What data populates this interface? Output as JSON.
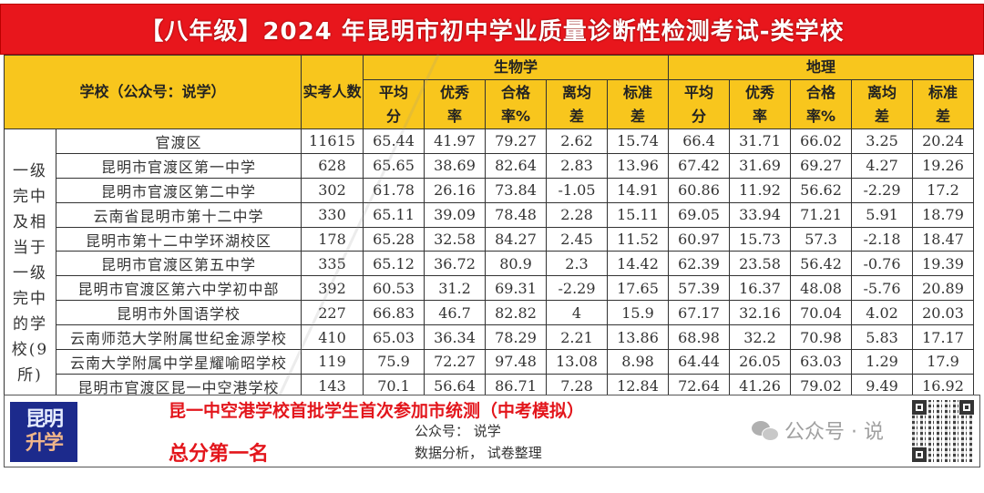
{
  "title": "【八年级】2024 年昆明市初中学业质量诊断性检测考试-类学校",
  "header": {
    "school_col": "学校（公众号：说学）",
    "count_col": "实考人数",
    "subjects": [
      {
        "name": "生物学",
        "metrics": [
          "平均分",
          "优秀率",
          "合格率%",
          "离均差",
          "标准差"
        ]
      },
      {
        "name": "地理",
        "metrics": [
          "平均分",
          "优秀率",
          "合格率%",
          "离均差",
          "标准差"
        ]
      }
    ]
  },
  "category_label": "一级完中及相当于一级完中的学校(9所)",
  "rows": [
    {
      "school": "官渡区",
      "count": "11615",
      "bio": [
        "65.44",
        "41.97",
        "79.27",
        "2.62",
        "15.74"
      ],
      "geo": [
        "66.4",
        "31.71",
        "66.02",
        "3.25",
        "20.24"
      ]
    },
    {
      "school": "昆明市官渡区第一中学",
      "count": "628",
      "bio": [
        "65.65",
        "38.69",
        "82.64",
        "2.83",
        "13.96"
      ],
      "geo": [
        "67.42",
        "31.69",
        "69.27",
        "4.27",
        "19.26"
      ]
    },
    {
      "school": "昆明市官渡区第二中学",
      "count": "302",
      "bio": [
        "61.78",
        "26.16",
        "73.84",
        "-1.05",
        "14.91"
      ],
      "geo": [
        "60.86",
        "11.92",
        "56.62",
        "-2.29",
        "17.2"
      ]
    },
    {
      "school": "云南省昆明市第十二中学",
      "count": "330",
      "bio": [
        "65.11",
        "39.09",
        "78.48",
        "2.28",
        "15.11"
      ],
      "geo": [
        "69.05",
        "33.94",
        "71.21",
        "5.91",
        "18.79"
      ]
    },
    {
      "school": "昆明市第十二中学环湖校区",
      "count": "178",
      "bio": [
        "65.28",
        "32.58",
        "84.27",
        "2.45",
        "11.52"
      ],
      "geo": [
        "60.97",
        "15.73",
        "57.3",
        "-2.18",
        "18.47"
      ]
    },
    {
      "school": "昆明市官渡区第五中学",
      "count": "335",
      "bio": [
        "65.12",
        "36.72",
        "80.9",
        "2.3",
        "14.42"
      ],
      "geo": [
        "62.39",
        "23.58",
        "56.42",
        "-0.76",
        "19.39"
      ]
    },
    {
      "school": "昆明市官渡区第六中学初中部",
      "count": "392",
      "bio": [
        "60.53",
        "31.2",
        "69.31",
        "-2.29",
        "17.65"
      ],
      "geo": [
        "57.39",
        "16.37",
        "48.08",
        "-5.76",
        "20.89"
      ]
    },
    {
      "school": "昆明市外国语学校",
      "count": "227",
      "bio": [
        "66.83",
        "46.7",
        "82.82",
        "4",
        "15.9"
      ],
      "geo": [
        "67.17",
        "32.16",
        "70.04",
        "4.02",
        "20.03"
      ]
    },
    {
      "school": "云南师范大学附属世纪金源学校",
      "count": "410",
      "bio": [
        "65.03",
        "36.34",
        "78.29",
        "2.21",
        "13.86"
      ],
      "geo": [
        "68.98",
        "32.2",
        "70.98",
        "5.83",
        "17.17"
      ]
    },
    {
      "school": "云南大学附属中学星耀喻昭学校",
      "count": "119",
      "bio": [
        "75.9",
        "72.27",
        "97.48",
        "13.08",
        "8.98"
      ],
      "geo": [
        "64.44",
        "26.05",
        "63.03",
        "1.29",
        "17.9"
      ]
    },
    {
      "school": "昆明市官渡区昆一中空港学校",
      "count": "143",
      "bio": [
        "70.1",
        "56.64",
        "86.71",
        "7.28",
        "12.84"
      ],
      "geo": [
        "72.64",
        "41.26",
        "79.02",
        "9.49",
        "16.92"
      ]
    }
  ],
  "footer": {
    "logo_line1": "昆明",
    "logo_line2": "升学",
    "headline": "昆一中空港学校首批学生首次参加市统测（中考模拟）",
    "subline": "总分第一名",
    "account": "公众号：  说学",
    "analysis": "数据分析，  试卷整理",
    "wechat_label": "公众号 · 说"
  },
  "colors": {
    "title_bg": "#e8161c",
    "header_bg": "#f8c61d",
    "headline": "#e3161c",
    "logo_bg": "#1c2a8c"
  }
}
